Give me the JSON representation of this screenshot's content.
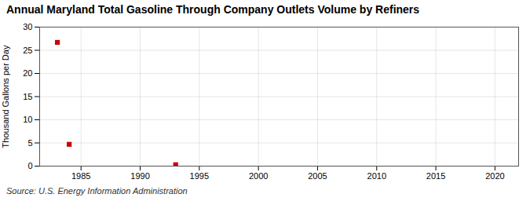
{
  "chart_data": {
    "type": "scatter",
    "title": "Annual Maryland Total Gasoline Through Company Outlets Volume by Refiners",
    "ylabel": "Thousand Gallons per Day",
    "source": "Source: U.S. Energy Information Administration",
    "x": [
      1983,
      1984,
      1993
    ],
    "values": [
      26.7,
      4.7,
      0.3
    ],
    "color": "#cc0000",
    "marker": "square",
    "xlim": [
      1981.5,
      2022
    ],
    "ylim": [
      0,
      30
    ],
    "xticks": [
      1985,
      1990,
      1995,
      2000,
      2005,
      2010,
      2015,
      2020
    ],
    "yticks": [
      0,
      5,
      10,
      15,
      20,
      25,
      30
    ],
    "grid": true
  }
}
